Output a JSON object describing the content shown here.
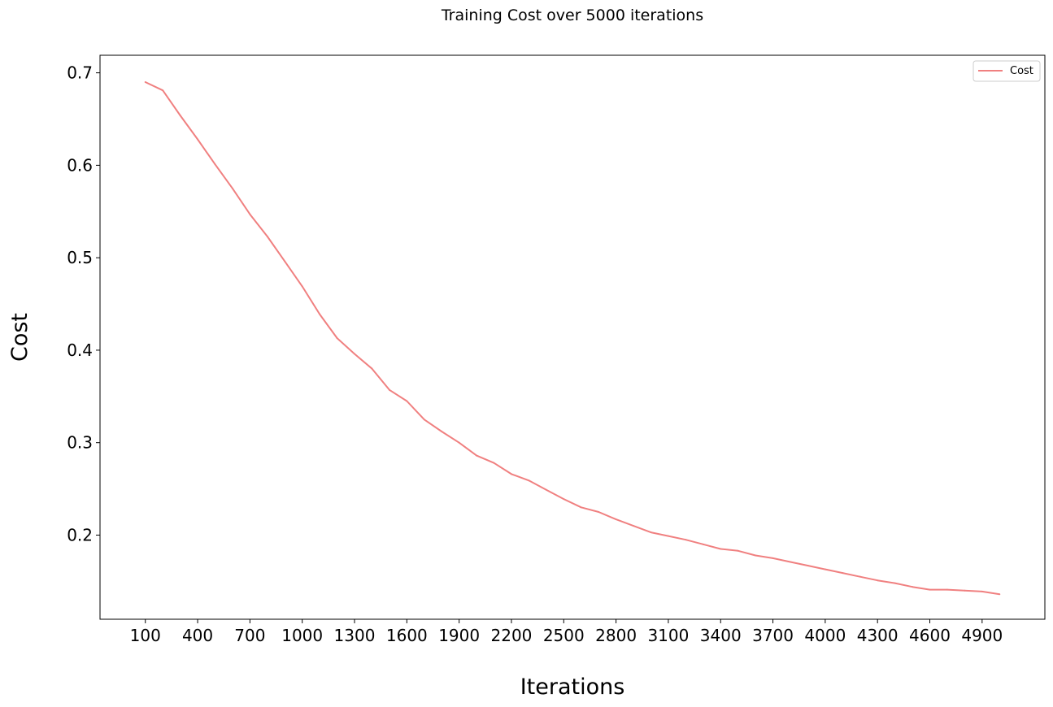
{
  "chart_data": {
    "type": "line",
    "title": "Training Cost over 5000 iterations",
    "xlabel": "Iterations",
    "ylabel": "Cost",
    "xlim": [
      -160,
      5260
    ],
    "ylim": [
      0.109,
      0.719
    ],
    "x_ticks": [
      100,
      400,
      700,
      1000,
      1300,
      1600,
      1900,
      2200,
      2500,
      2800,
      3100,
      3400,
      3700,
      4000,
      4300,
      4600,
      4900
    ],
    "y_ticks": [
      0.2,
      0.3,
      0.4,
      0.5,
      0.6,
      0.7
    ],
    "y_tick_labels": [
      "0.2",
      "0.3",
      "0.4",
      "0.5",
      "0.6",
      "0.7"
    ],
    "grid": false,
    "legend": "top-right",
    "series": [
      {
        "name": "Cost",
        "color": "#f08080",
        "x": [
          100,
          200,
          300,
          400,
          500,
          600,
          700,
          800,
          900,
          1000,
          1100,
          1200,
          1300,
          1400,
          1500,
          1600,
          1700,
          1800,
          1900,
          2000,
          2100,
          2200,
          2300,
          2400,
          2500,
          2600,
          2700,
          2800,
          2900,
          3000,
          3100,
          3200,
          3300,
          3400,
          3500,
          3600,
          3700,
          3800,
          3900,
          4000,
          4100,
          4200,
          4300,
          4400,
          4500,
          4600,
          4700,
          4800,
          4900,
          5000
        ],
        "values": [
          0.69,
          0.681,
          0.654,
          0.628,
          0.601,
          0.575,
          0.547,
          0.523,
          0.496,
          0.469,
          0.439,
          0.413,
          0.396,
          0.38,
          0.357,
          0.345,
          0.325,
          0.312,
          0.3,
          0.286,
          0.278,
          0.266,
          0.259,
          0.249,
          0.239,
          0.23,
          0.225,
          0.217,
          0.21,
          0.203,
          0.199,
          0.195,
          0.19,
          0.185,
          0.183,
          0.178,
          0.175,
          0.171,
          0.167,
          0.163,
          0.159,
          0.155,
          0.151,
          0.148,
          0.144,
          0.141,
          0.141,
          0.14,
          0.139,
          0.136
        ]
      }
    ]
  }
}
